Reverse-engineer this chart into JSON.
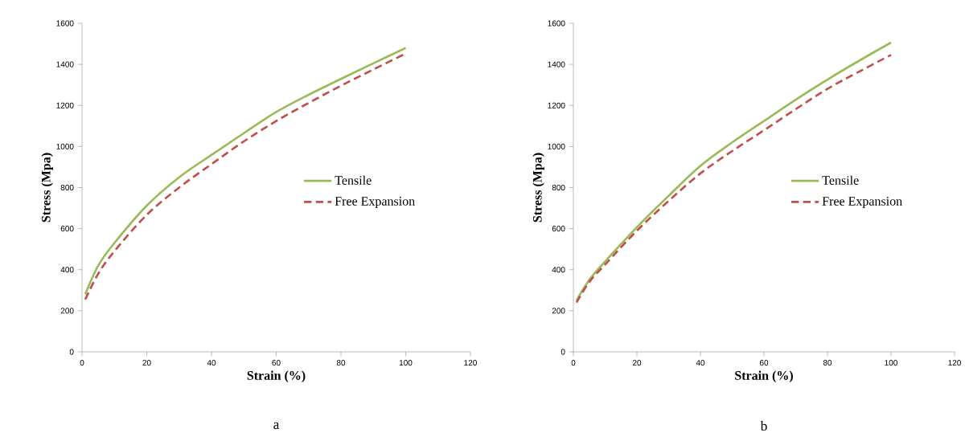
{
  "chart_data": [
    {
      "type": "line",
      "xlabel": "Strain (%)",
      "ylabel": "Stress (Mpa)",
      "annotations": [
        "a"
      ],
      "x": [
        1,
        5,
        10,
        20,
        30,
        40,
        50,
        60,
        70,
        80,
        90,
        100
      ],
      "legend": "right",
      "xlim": [
        0,
        120
      ],
      "ylim": [
        0,
        1600
      ],
      "xticks": [
        0,
        20,
        40,
        60,
        80,
        100,
        120
      ],
      "yticks": [
        0,
        200,
        400,
        600,
        800,
        1000,
        1200,
        1400,
        1600
      ],
      "series": [
        {
          "name": "Tensile",
          "color": "#9bbb59",
          "line_style": "solid",
          "values": [
            280,
            420,
            530,
            712,
            850,
            959,
            1065,
            1168,
            1252,
            1329,
            1405,
            1480
          ]
        },
        {
          "name": "Free Expansion",
          "color": "#c0504d",
          "line_style": "dashed",
          "values": [
            255,
            380,
            490,
            667,
            800,
            914,
            1025,
            1124,
            1212,
            1296,
            1375,
            1453
          ]
        }
      ]
    },
    {
      "type": "line",
      "xlabel": "Strain (%)",
      "ylabel": "Stress (Mpa)",
      "annotations": [
        "b"
      ],
      "x": [
        1,
        5,
        10,
        20,
        30,
        40,
        50,
        60,
        70,
        80,
        90,
        100
      ],
      "legend": "right",
      "xlim": [
        0,
        120
      ],
      "ylim": [
        0,
        1600
      ],
      "xticks": [
        0,
        20,
        40,
        60,
        80,
        100,
        120
      ],
      "yticks": [
        0,
        200,
        400,
        600,
        800,
        1000,
        1200,
        1400,
        1600
      ],
      "series": [
        {
          "name": "Tensile",
          "color": "#9bbb59",
          "line_style": "solid",
          "values": [
            250,
            350,
            440,
            607,
            760,
            906,
            1020,
            1124,
            1228,
            1326,
            1418,
            1506
          ]
        },
        {
          "name": "Free Expansion",
          "color": "#c0504d",
          "line_style": "dashed",
          "values": [
            240,
            340,
            425,
            590,
            735,
            869,
            978,
            1079,
            1182,
            1281,
            1365,
            1446
          ]
        }
      ]
    }
  ]
}
